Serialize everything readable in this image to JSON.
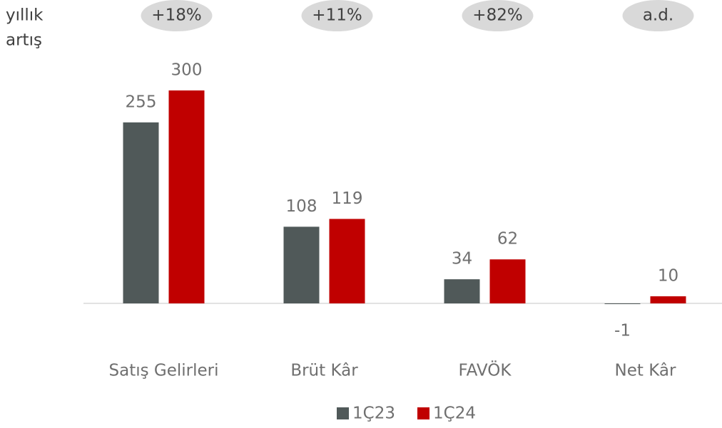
{
  "chart_data": {
    "type": "bar",
    "annotation_label": [
      "yıllık",
      "artış"
    ],
    "growth_labels": [
      "+18%",
      "+11%",
      "+82%",
      "a.d."
    ],
    "categories": [
      "Satış Gelirleri",
      "Brüt Kâr",
      "FAVÖK",
      "Net Kâr"
    ],
    "series": [
      {
        "name": "1Ç23",
        "color": "#505959",
        "values": [
          255,
          108,
          34,
          -1
        ]
      },
      {
        "name": "1Ç24",
        "color": "#c00000",
        "values": [
          300,
          119,
          62,
          10
        ]
      }
    ],
    "ylim": [
      -10,
      300
    ]
  }
}
